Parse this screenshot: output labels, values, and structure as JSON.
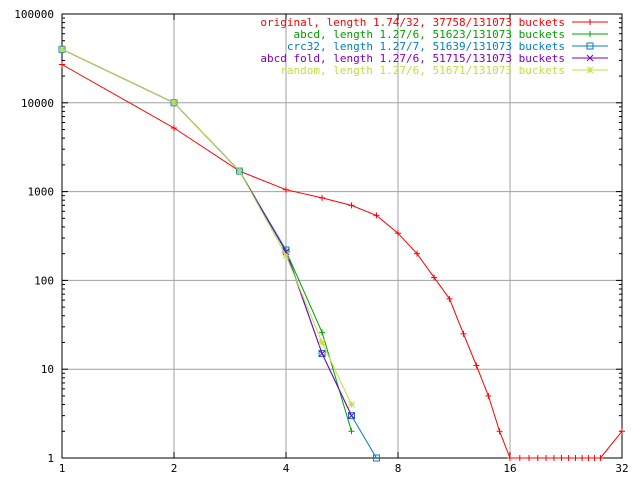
{
  "chart_data": {
    "type": "line",
    "title": "",
    "xlabel": "",
    "ylabel": "",
    "x_scale": "log2",
    "y_scale": "log10",
    "xlim": [
      1,
      32
    ],
    "ylim": [
      1,
      100000
    ],
    "grid": true,
    "legend_position": "top-right",
    "x_ticks": [
      {
        "value": 1,
        "label": "1"
      },
      {
        "value": 2,
        "label": "2"
      },
      {
        "value": 4,
        "label": "4"
      },
      {
        "value": 8,
        "label": "8"
      },
      {
        "value": 16,
        "label": "16"
      },
      {
        "value": 32,
        "label": "32"
      }
    ],
    "y_ticks": [
      {
        "value": 1,
        "label": "1"
      },
      {
        "value": 10,
        "label": "10"
      },
      {
        "value": 100,
        "label": "100"
      },
      {
        "value": 1000,
        "label": "1000"
      },
      {
        "value": 10000,
        "label": "10000"
      },
      {
        "value": 100000,
        "label": "100000"
      }
    ],
    "series": [
      {
        "name": "original, length 1.74/32, 37758/131073 buckets",
        "color": "#ff0000",
        "marker": "plus",
        "points": [
          [
            1,
            27000
          ],
          [
            2,
            5200
          ],
          [
            3,
            1700
          ],
          [
            4,
            1050
          ],
          [
            5,
            850
          ],
          [
            6,
            700
          ],
          [
            7,
            540
          ],
          [
            8,
            340
          ],
          [
            9,
            200
          ],
          [
            10,
            108
          ],
          [
            11,
            62
          ],
          [
            12,
            25
          ],
          [
            13,
            11
          ],
          [
            14,
            5
          ],
          [
            15,
            2
          ],
          [
            16,
            1
          ],
          [
            17,
            1
          ],
          [
            18,
            1
          ],
          [
            19,
            1
          ],
          [
            20,
            1
          ],
          [
            21,
            1
          ],
          [
            22,
            1
          ],
          [
            23,
            1
          ],
          [
            24,
            1
          ],
          [
            25,
            1
          ],
          [
            26,
            1
          ],
          [
            27,
            1
          ],
          [
            28,
            1
          ],
          [
            32,
            2
          ]
        ]
      },
      {
        "name": "abcd, length 1.27/6, 51623/131073 buckets",
        "color": "#00a000",
        "marker": "plus",
        "points": [
          [
            1,
            40000
          ],
          [
            2,
            10000
          ],
          [
            3,
            1700
          ],
          [
            4,
            215
          ],
          [
            5,
            26
          ],
          [
            6,
            2
          ]
        ]
      },
      {
        "name": "crc32, length 1.27/7, 51639/131073 buckets",
        "color": "#0080c0",
        "marker": "square",
        "points": [
          [
            1,
            40000
          ],
          [
            2,
            10000
          ],
          [
            3,
            1700
          ],
          [
            4,
            220
          ],
          [
            5,
            15
          ],
          [
            6,
            3
          ],
          [
            7,
            1
          ]
        ]
      },
      {
        "name": "abcd fold, length 1.27/6, 51715/131073 buckets",
        "color": "#8000c0",
        "marker": "x",
        "points": [
          [
            1,
            40000
          ],
          [
            2,
            10000
          ],
          [
            3,
            1700
          ],
          [
            4,
            210
          ],
          [
            5,
            15
          ],
          [
            6,
            3
          ]
        ]
      },
      {
        "name": "random, length 1.27/6, 51671/131073 buckets",
        "color": "#c0e040",
        "marker": "star",
        "points": [
          [
            1,
            40000
          ],
          [
            2,
            10000
          ],
          [
            3,
            1700
          ],
          [
            4,
            190
          ],
          [
            5,
            20
          ],
          [
            6,
            4
          ]
        ]
      }
    ]
  }
}
